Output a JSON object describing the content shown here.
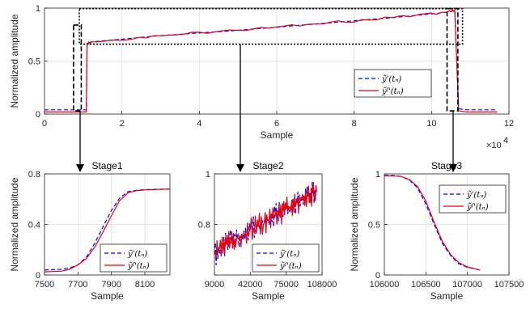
{
  "chart_data": [
    {
      "id": "overview",
      "type": "line",
      "title": "",
      "xlabel": "Sample",
      "ylabel": "Normalized amplitude",
      "xlim": [
        0,
        120000
      ],
      "ylim": [
        0,
        1
      ],
      "x_ticks": [
        0,
        20000,
        40000,
        60000,
        80000,
        100000,
        120000
      ],
      "x_tick_labels": [
        "0",
        "2",
        "4",
        "6",
        "8",
        "10",
        "12"
      ],
      "x_exponent_label": "×10",
      "x_exponent_power": "4",
      "y_ticks": [
        0,
        0.5,
        1
      ],
      "y_tick_labels": [
        "0",
        "0.5",
        "1"
      ],
      "grid": true,
      "legend_position": "lower-right",
      "series": [
        {
          "name": "y'(tn)",
          "legend_label": "ỹ'(tₙ)",
          "color": "#0000ff",
          "style": "dashed",
          "points": [
            [
              0,
              0.04
            ],
            [
              10000,
              0.04
            ],
            [
              10800,
              0.04
            ],
            [
              11000,
              0.66
            ],
            [
              12000,
              0.68
            ],
            [
              30000,
              0.74
            ],
            [
              50000,
              0.79
            ],
            [
              70000,
              0.85
            ],
            [
              90000,
              0.91
            ],
            [
              104000,
              0.96
            ],
            [
              106000,
              0.98
            ],
            [
              107000,
              0.05
            ],
            [
              109000,
              0.04
            ],
            [
              117000,
              0.04
            ]
          ]
        },
        {
          "name": "yf'(tn)",
          "legend_label": "ỹᶠ'(tₙ)",
          "color": "#e8000b",
          "style": "solid",
          "points": [
            [
              0,
              0.02
            ],
            [
              10000,
              0.02
            ],
            [
              10800,
              0.02
            ],
            [
              11000,
              0.66
            ],
            [
              12000,
              0.68
            ],
            [
              30000,
              0.74
            ],
            [
              50000,
              0.79
            ],
            [
              70000,
              0.85
            ],
            [
              90000,
              0.91
            ],
            [
              104000,
              0.96
            ],
            [
              106000,
              0.98
            ],
            [
              107000,
              0.03
            ],
            [
              109000,
              0.02
            ],
            [
              117000,
              0.02
            ]
          ]
        }
      ]
    },
    {
      "id": "stage1",
      "type": "line",
      "title": "Stage1",
      "xlabel": "Sample",
      "ylabel": "Normalized amplitude",
      "xlim": [
        7500,
        8250
      ],
      "ylim": [
        0,
        0.8
      ],
      "x_ticks": [
        7500,
        7700,
        7900,
        8100
      ],
      "x_tick_labels": [
        "7500",
        "7700",
        "7900",
        "8100"
      ],
      "y_ticks": [
        0,
        0.4,
        0.8
      ],
      "y_tick_labels": [
        "0",
        "0.4",
        "0.8"
      ],
      "grid": true,
      "legend_position": "lower-right",
      "series": [
        {
          "name": "y'(tn)",
          "legend_label": "ỹ'(tₙ)",
          "color": "#0000ff",
          "style": "dashed",
          "points": [
            [
              7500,
              0.04
            ],
            [
              7600,
              0.045
            ],
            [
              7650,
              0.055
            ],
            [
              7700,
              0.08
            ],
            [
              7750,
              0.14
            ],
            [
              7800,
              0.25
            ],
            [
              7850,
              0.38
            ],
            [
              7900,
              0.51
            ],
            [
              7950,
              0.61
            ],
            [
              8000,
              0.66
            ],
            [
              8050,
              0.67
            ],
            [
              8100,
              0.675
            ],
            [
              8150,
              0.678
            ],
            [
              8250,
              0.68
            ]
          ]
        },
        {
          "name": "yf'(tn)",
          "legend_label": "ỹᶠ'(tₙ)",
          "color": "#e8000b",
          "style": "solid",
          "points": [
            [
              7500,
              0.025
            ],
            [
              7600,
              0.03
            ],
            [
              7650,
              0.045
            ],
            [
              7700,
              0.08
            ],
            [
              7750,
              0.13
            ],
            [
              7800,
              0.22
            ],
            [
              7850,
              0.34
            ],
            [
              7900,
              0.47
            ],
            [
              7950,
              0.59
            ],
            [
              8000,
              0.65
            ],
            [
              8050,
              0.667
            ],
            [
              8100,
              0.673
            ],
            [
              8150,
              0.676
            ],
            [
              8250,
              0.68
            ]
          ]
        }
      ]
    },
    {
      "id": "stage2",
      "type": "line",
      "title": "Stage2",
      "xlabel": "Sample",
      "ylabel": "",
      "xlim": [
        9000,
        108000
      ],
      "ylim": [
        0.6,
        1.0
      ],
      "x_ticks": [
        9000,
        42000,
        75000,
        108000
      ],
      "x_tick_labels": [
        "9000",
        "42000",
        "75000",
        "108000"
      ],
      "y_ticks": [
        0.6,
        0.8,
        1.0
      ],
      "y_tick_labels": [
        "",
        "0.8",
        "1"
      ],
      "grid": true,
      "legend_position": "lower-right",
      "series": [
        {
          "name": "y'(tn)",
          "legend_label": "ỹ'(tₙ)",
          "color": "#0000ff",
          "style": "dashed",
          "points": [
            [
              9000,
              0.68
            ],
            [
              20000,
              0.72
            ],
            [
              30000,
              0.75
            ],
            [
              42000,
              0.78
            ],
            [
              55000,
              0.81
            ],
            [
              65000,
              0.835
            ],
            [
              75000,
              0.86
            ],
            [
              85000,
              0.885
            ],
            [
              95000,
              0.91
            ],
            [
              103000,
              0.93
            ]
          ]
        },
        {
          "name": "yf'(tn)",
          "legend_label": "ỹᶠ'(tₙ)",
          "color": "#e8000b",
          "style": "solid",
          "points": [
            [
              9000,
              0.68
            ],
            [
              20000,
              0.72
            ],
            [
              30000,
              0.75
            ],
            [
              42000,
              0.78
            ],
            [
              55000,
              0.81
            ],
            [
              65000,
              0.835
            ],
            [
              75000,
              0.86
            ],
            [
              85000,
              0.885
            ],
            [
              95000,
              0.91
            ],
            [
              103000,
              0.93
            ]
          ]
        }
      ]
    },
    {
      "id": "stage3",
      "type": "line",
      "title": "Stage3",
      "xlabel": "Sample",
      "ylabel": "Normalized amplitude",
      "xlim": [
        106000,
        107500
      ],
      "ylim": [
        0,
        1
      ],
      "x_ticks": [
        106000,
        106500,
        107000,
        107500
      ],
      "x_tick_labels": [
        "106000",
        "106500",
        "107000",
        "107500"
      ],
      "y_ticks": [
        0,
        0.5,
        1
      ],
      "y_tick_labels": [
        "0",
        "0.5",
        "1"
      ],
      "grid": true,
      "legend_position": "upper-right",
      "series": [
        {
          "name": "y'(tn)",
          "legend_label": "ỹ'(tₙ)",
          "color": "#0000ff",
          "style": "dashed",
          "points": [
            [
              106000,
              0.985
            ],
            [
              106100,
              0.985
            ],
            [
              106200,
              0.975
            ],
            [
              106300,
              0.94
            ],
            [
              106400,
              0.86
            ],
            [
              106500,
              0.7
            ],
            [
              106600,
              0.5
            ],
            [
              106700,
              0.31
            ],
            [
              106800,
              0.19
            ],
            [
              106900,
              0.11
            ],
            [
              107000,
              0.075
            ],
            [
              107150,
              0.05
            ]
          ]
        },
        {
          "name": "yf'(tn)",
          "legend_label": "ỹᶠ'(tₙ)",
          "color": "#e8000b",
          "style": "solid",
          "points": [
            [
              106000,
              0.98
            ],
            [
              106100,
              0.98
            ],
            [
              106200,
              0.975
            ],
            [
              106300,
              0.945
            ],
            [
              106400,
              0.875
            ],
            [
              106500,
              0.73
            ],
            [
              106600,
              0.52
            ],
            [
              106700,
              0.33
            ],
            [
              106800,
              0.2
            ],
            [
              106900,
              0.12
            ],
            [
              107000,
              0.08
            ],
            [
              107150,
              0.05
            ]
          ]
        }
      ]
    }
  ],
  "annotation": {
    "zoom_boxes": [
      {
        "target": "stage1",
        "style": "dashed"
      },
      {
        "target": "stage2",
        "style": "dotted"
      },
      {
        "target": "stage3",
        "style": "dashed"
      }
    ]
  }
}
